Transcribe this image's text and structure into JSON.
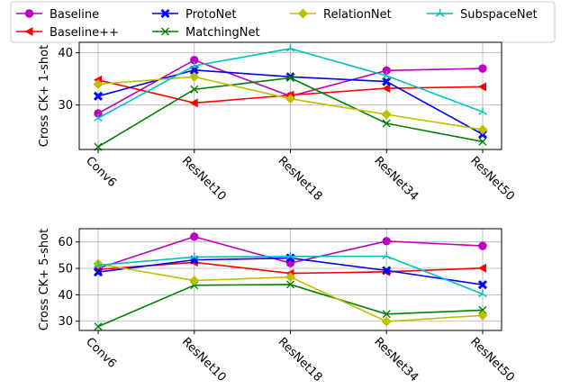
{
  "chart_data": [
    {
      "type": "line",
      "ylabel": "Cross CK+ 1-shot",
      "categories": [
        "Conv6",
        "ResNet10",
        "ResNet18",
        "ResNet34",
        "ResNet50"
      ],
      "ylim": [
        21.5,
        42.0
      ],
      "yticks": [
        30,
        40
      ],
      "grid": true,
      "series": [
        {
          "name": "Baseline",
          "color": "#bf00bf",
          "marker": "circle",
          "values": [
            28.4,
            38.6,
            31.7,
            36.6,
            37.0
          ]
        },
        {
          "name": "Baseline++",
          "color": "#ff0000",
          "marker": "triangle-left",
          "values": [
            34.8,
            30.4,
            31.9,
            33.2,
            33.5
          ]
        },
        {
          "name": "ProtoNet",
          "color": "#0000ff",
          "marker": "x-thick",
          "values": [
            31.7,
            36.7,
            35.4,
            34.5,
            24.4
          ]
        },
        {
          "name": "MatchingNet",
          "color": "#008000",
          "marker": "x",
          "values": [
            22.0,
            33.0,
            35.2,
            26.5,
            23.0
          ]
        },
        {
          "name": "RelationNet",
          "color": "#bfbf00",
          "marker": "diamond",
          "values": [
            34.0,
            35.4,
            31.2,
            28.2,
            25.3
          ]
        },
        {
          "name": "SubspaceNet",
          "color": "#00bfbf",
          "marker": "tri",
          "values": [
            27.5,
            37.5,
            40.8,
            35.6,
            28.7
          ]
        }
      ]
    },
    {
      "type": "line",
      "ylabel": "Cross CK+ 5-shot",
      "categories": [
        "Conv6",
        "ResNet10",
        "ResNet18",
        "ResNet34",
        "ResNet50"
      ],
      "ylim": [
        26.5,
        65.0
      ],
      "yticks": [
        30,
        40,
        50,
        60
      ],
      "grid": true,
      "series": [
        {
          "name": "Baseline",
          "color": "#bf00bf",
          "marker": "circle",
          "values": [
            50.0,
            62.0,
            52.0,
            60.3,
            58.5
          ]
        },
        {
          "name": "Baseline++",
          "color": "#ff0000",
          "marker": "triangle-left",
          "values": [
            49.6,
            52.3,
            48.1,
            48.7,
            50.1
          ]
        },
        {
          "name": "ProtoNet",
          "color": "#0000ff",
          "marker": "x-thick",
          "values": [
            48.6,
            53.2,
            53.9,
            49.2,
            43.8
          ]
        },
        {
          "name": "MatchingNet",
          "color": "#008000",
          "marker": "x",
          "values": [
            28.0,
            43.6,
            43.9,
            32.7,
            34.2
          ]
        },
        {
          "name": "RelationNet",
          "color": "#bfbf00",
          "marker": "diamond",
          "values": [
            51.7,
            45.4,
            46.7,
            29.9,
            32.2
          ]
        },
        {
          "name": "SubspaceNet",
          "color": "#00bfbf",
          "marker": "tri",
          "values": [
            51.2,
            54.3,
            54.5,
            54.6,
            40.3
          ]
        }
      ]
    }
  ],
  "legend": {
    "position": "top",
    "entries": [
      "Baseline",
      "ProtoNet",
      "RelationNet",
      "SubspaceNet",
      "Baseline++",
      "MatchingNet"
    ]
  }
}
